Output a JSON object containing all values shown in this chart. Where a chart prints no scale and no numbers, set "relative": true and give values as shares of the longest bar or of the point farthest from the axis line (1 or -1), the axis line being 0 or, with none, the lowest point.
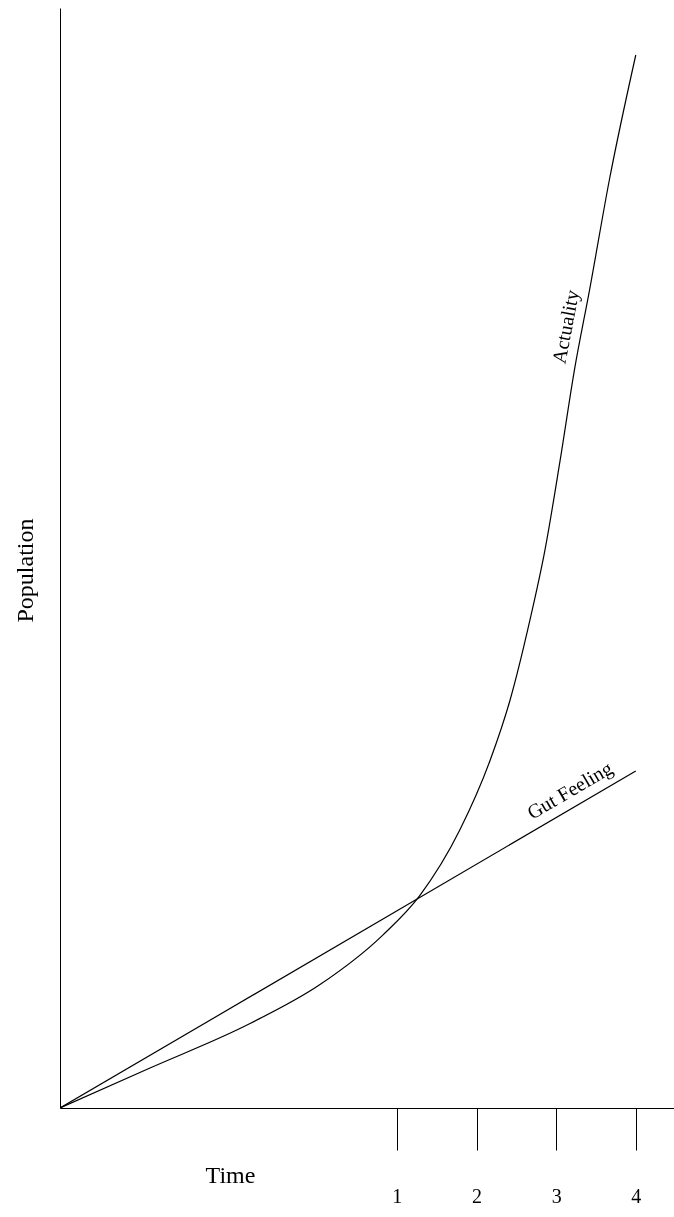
{
  "chart_data": {
    "type": "line",
    "xlabel": "Time",
    "ylabel": "Population",
    "relative": true,
    "xlim": [
      -3.23,
      4.48
    ],
    "xticks": [
      1,
      2,
      3,
      4
    ],
    "line_style": "solid",
    "series": [
      {
        "name": "Actuality",
        "color": "#000000",
        "x": [
          -3.23,
          -2.1,
          -0.85,
          0.03,
          0.82,
          1.29,
          1.79,
          2.17,
          2.42,
          2.67,
          2.86,
          3.05,
          3.23,
          3.42,
          3.67,
          4.0
        ],
        "values": [
          0,
          0.038,
          0.08,
          0.117,
          0.164,
          0.202,
          0.264,
          0.33,
          0.387,
          0.463,
          0.53,
          0.615,
          0.701,
          0.777,
          0.882,
          1.0
        ]
      },
      {
        "name": "Gut Feeling",
        "color": "#000000",
        "x": [
          -3.23,
          4.0
        ],
        "values": [
          0,
          0.32
        ]
      }
    ]
  }
}
